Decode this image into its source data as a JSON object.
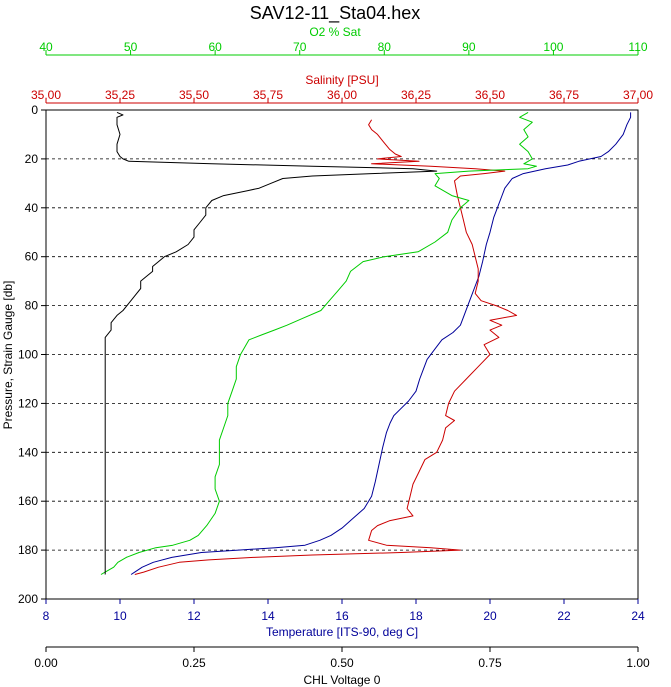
{
  "title": "SAV12-11_Sta04.hex",
  "colors": {
    "o2": "#00cc00",
    "salinity": "#cc0000",
    "temperature": "#000099",
    "chl": "#000000",
    "grid": "#000000"
  },
  "chart_data": {
    "type": "line",
    "title": "SAV12-11_Sta04.hex",
    "y_axis": {
      "label": "Pressure, Strain Gauge [db]",
      "range": [
        0,
        200
      ],
      "inverted": true,
      "ticks": [
        "0",
        "20",
        "40",
        "60",
        "80",
        "100",
        "120",
        "140",
        "160",
        "180",
        "200"
      ]
    },
    "x_axes": [
      {
        "id": "o2",
        "label": "O2 % Sat",
        "position": "top",
        "range": [
          40,
          110
        ],
        "ticks": [
          "40",
          "50",
          "60",
          "70",
          "80",
          "90",
          "100",
          "110"
        ]
      },
      {
        "id": "salinity",
        "label": "Salinity [PSU]",
        "position": "top",
        "range": [
          35.0,
          37.0
        ],
        "ticks": [
          "35,00",
          "35,25",
          "35,50",
          "35,75",
          "36,00",
          "36,25",
          "36,50",
          "36,75",
          "37,00"
        ]
      },
      {
        "id": "temperature",
        "label": "Temperature [ITS-90, deg C]",
        "position": "bottom",
        "range": [
          8,
          24
        ],
        "ticks": [
          "8",
          "10",
          "12",
          "14",
          "16",
          "18",
          "20",
          "22",
          "24"
        ]
      },
      {
        "id": "chl",
        "label": "CHL Voltage 0",
        "position": "bottom",
        "range": [
          0,
          1
        ],
        "ticks": [
          "0.00",
          "0.25",
          "0.50",
          "0.75",
          "1.00"
        ]
      }
    ],
    "grid": "dashed horizontal lines every 20 db",
    "series": [
      {
        "axis": "temperature",
        "points": [
          [
            23.8,
            1
          ],
          [
            23.8,
            3
          ],
          [
            23.7,
            6
          ],
          [
            23.6,
            10
          ],
          [
            23.4,
            14
          ],
          [
            23.2,
            17
          ],
          [
            23.0,
            19
          ],
          [
            22.7,
            20
          ],
          [
            22.4,
            21
          ],
          [
            22.1,
            22.5
          ],
          [
            21.5,
            24
          ],
          [
            20.9,
            26
          ],
          [
            20.6,
            28
          ],
          [
            20.4,
            32
          ],
          [
            20.3,
            36
          ],
          [
            20.2,
            40
          ],
          [
            20.1,
            44
          ],
          [
            20.0,
            50
          ],
          [
            19.9,
            55
          ],
          [
            19.8,
            62
          ],
          [
            19.7,
            68
          ],
          [
            19.6,
            72
          ],
          [
            19.5,
            76
          ],
          [
            19.4,
            80
          ],
          [
            19.3,
            84
          ],
          [
            19.2,
            88
          ],
          [
            19.0,
            91
          ],
          [
            18.7,
            94
          ],
          [
            18.5,
            98
          ],
          [
            18.3,
            102
          ],
          [
            18.2,
            106
          ],
          [
            18.1,
            110
          ],
          [
            18.0,
            115
          ],
          [
            17.8,
            119
          ],
          [
            17.6,
            122
          ],
          [
            17.4,
            125
          ],
          [
            17.3,
            128
          ],
          [
            17.2,
            132
          ],
          [
            17.1,
            138
          ],
          [
            17.0,
            145
          ],
          [
            16.9,
            152
          ],
          [
            16.8,
            158
          ],
          [
            16.6,
            163
          ],
          [
            16.3,
            167
          ],
          [
            16.0,
            171
          ],
          [
            15.7,
            174
          ],
          [
            15.4,
            176
          ],
          [
            15.0,
            178
          ],
          [
            14.2,
            179
          ],
          [
            13.2,
            180
          ],
          [
            12.2,
            181
          ],
          [
            11.4,
            183
          ],
          [
            10.9,
            185
          ],
          [
            10.6,
            187
          ],
          [
            10.4,
            189
          ],
          [
            10.3,
            190
          ]
        ]
      },
      {
        "axis": "salinity",
        "points": [
          [
            36.1,
            4
          ],
          [
            36.09,
            6
          ],
          [
            36.1,
            8
          ],
          [
            36.12,
            10
          ],
          [
            36.14,
            13
          ],
          [
            36.16,
            16
          ],
          [
            36.18,
            18
          ],
          [
            36.2,
            19
          ],
          [
            36.12,
            20
          ],
          [
            36.26,
            21
          ],
          [
            36.1,
            22
          ],
          [
            36.3,
            23
          ],
          [
            36.45,
            24
          ],
          [
            36.55,
            25
          ],
          [
            36.48,
            26
          ],
          [
            36.4,
            27
          ],
          [
            36.38,
            29
          ],
          [
            36.39,
            35
          ],
          [
            36.4,
            40
          ],
          [
            36.41,
            45
          ],
          [
            36.42,
            50
          ],
          [
            36.44,
            55
          ],
          [
            36.45,
            60
          ],
          [
            36.46,
            65
          ],
          [
            36.46,
            70
          ],
          [
            36.45,
            75
          ],
          [
            36.47,
            78
          ],
          [
            36.52,
            80
          ],
          [
            36.56,
            82
          ],
          [
            36.59,
            84
          ],
          [
            36.5,
            86
          ],
          [
            36.54,
            88
          ],
          [
            36.5,
            90
          ],
          [
            36.53,
            93
          ],
          [
            36.48,
            96
          ],
          [
            36.5,
            100
          ],
          [
            36.46,
            105
          ],
          [
            36.42,
            110
          ],
          [
            36.38,
            115
          ],
          [
            36.36,
            120
          ],
          [
            36.35,
            125
          ],
          [
            36.38,
            127
          ],
          [
            36.35,
            130
          ],
          [
            36.34,
            135
          ],
          [
            36.32,
            140
          ],
          [
            36.28,
            143
          ],
          [
            36.26,
            148
          ],
          [
            36.24,
            153
          ],
          [
            36.23,
            158
          ],
          [
            36.22,
            163
          ],
          [
            36.24,
            166
          ],
          [
            36.16,
            168
          ],
          [
            36.12,
            170
          ],
          [
            36.1,
            172
          ],
          [
            36.09,
            176
          ],
          [
            36.15,
            178
          ],
          [
            36.3,
            179
          ],
          [
            36.4,
            180
          ],
          [
            36.2,
            181
          ],
          [
            35.9,
            182
          ],
          [
            35.7,
            183
          ],
          [
            35.55,
            184
          ],
          [
            35.45,
            185
          ],
          [
            35.38,
            187
          ],
          [
            35.33,
            189
          ],
          [
            35.3,
            190
          ]
        ]
      },
      {
        "axis": "o2",
        "points": [
          [
            97.0,
            1
          ],
          [
            96.0,
            3
          ],
          [
            97.5,
            5
          ],
          [
            96.5,
            8
          ],
          [
            97.0,
            11
          ],
          [
            96.0,
            14
          ],
          [
            97.0,
            17
          ],
          [
            97.5,
            20
          ],
          [
            96.5,
            22
          ],
          [
            98.0,
            23
          ],
          [
            97.0,
            24
          ],
          [
            90.0,
            25
          ],
          [
            86.0,
            26
          ],
          [
            86.5,
            28
          ],
          [
            86.0,
            31
          ],
          [
            88.0,
            35
          ],
          [
            90.0,
            37
          ],
          [
            89.0,
            40
          ],
          [
            88.0,
            45
          ],
          [
            87.5,
            50
          ],
          [
            86.0,
            54
          ],
          [
            84.0,
            58
          ],
          [
            80.0,
            60
          ],
          [
            77.5,
            62
          ],
          [
            76.0,
            66
          ],
          [
            75.5,
            70
          ],
          [
            74.5,
            74
          ],
          [
            73.5,
            78
          ],
          [
            72.5,
            82
          ],
          [
            70.5,
            85
          ],
          [
            68.5,
            88
          ],
          [
            67.0,
            90
          ],
          [
            65.5,
            92
          ],
          [
            64.0,
            94
          ],
          [
            63.5,
            97
          ],
          [
            63.0,
            100
          ],
          [
            62.5,
            105
          ],
          [
            62.5,
            110
          ],
          [
            62.0,
            115
          ],
          [
            61.5,
            120
          ],
          [
            61.5,
            125
          ],
          [
            61.0,
            130
          ],
          [
            60.5,
            135
          ],
          [
            60.5,
            140
          ],
          [
            60.5,
            145
          ],
          [
            60.0,
            150
          ],
          [
            60.0,
            155
          ],
          [
            60.5,
            160
          ],
          [
            60.0,
            165
          ],
          [
            59.0,
            170
          ],
          [
            58.0,
            174
          ],
          [
            57.0,
            176
          ],
          [
            55.0,
            178
          ],
          [
            53.0,
            179
          ],
          [
            51.0,
            181
          ],
          [
            49.5,
            183
          ],
          [
            48.5,
            185
          ],
          [
            48.0,
            187
          ],
          [
            47.0,
            189
          ],
          [
            46.5,
            190
          ]
        ]
      },
      {
        "axis": "chl",
        "points": [
          [
            0.12,
            1
          ],
          [
            0.13,
            2
          ],
          [
            0.12,
            3
          ],
          [
            0.12,
            6
          ],
          [
            0.125,
            10
          ],
          [
            0.12,
            14
          ],
          [
            0.12,
            17
          ],
          [
            0.125,
            19
          ],
          [
            0.13,
            20
          ],
          [
            0.14,
            21
          ],
          [
            0.28,
            22
          ],
          [
            0.45,
            23
          ],
          [
            0.62,
            24
          ],
          [
            0.66,
            25
          ],
          [
            0.55,
            26
          ],
          [
            0.45,
            27
          ],
          [
            0.4,
            28
          ],
          [
            0.38,
            30
          ],
          [
            0.36,
            32
          ],
          [
            0.34,
            33
          ],
          [
            0.3,
            35
          ],
          [
            0.28,
            37
          ],
          [
            0.27,
            40
          ],
          [
            0.27,
            43
          ],
          [
            0.26,
            46
          ],
          [
            0.25,
            49
          ],
          [
            0.25,
            52
          ],
          [
            0.24,
            55
          ],
          [
            0.22,
            58
          ],
          [
            0.2,
            60
          ],
          [
            0.19,
            62
          ],
          [
            0.18,
            64
          ],
          [
            0.18,
            66
          ],
          [
            0.17,
            68
          ],
          [
            0.16,
            70
          ],
          [
            0.16,
            73
          ],
          [
            0.15,
            76
          ],
          [
            0.14,
            79
          ],
          [
            0.13,
            82
          ],
          [
            0.12,
            84
          ],
          [
            0.11,
            87
          ],
          [
            0.11,
            90
          ],
          [
            0.1,
            93
          ],
          [
            0.1,
            96
          ],
          [
            0.1,
            100
          ],
          [
            0.1,
            110
          ],
          [
            0.1,
            120
          ],
          [
            0.1,
            130
          ],
          [
            0.1,
            140
          ],
          [
            0.1,
            150
          ],
          [
            0.1,
            160
          ],
          [
            0.1,
            170
          ],
          [
            0.1,
            180
          ],
          [
            0.1,
            185
          ],
          [
            0.1,
            190
          ]
        ]
      }
    ]
  }
}
